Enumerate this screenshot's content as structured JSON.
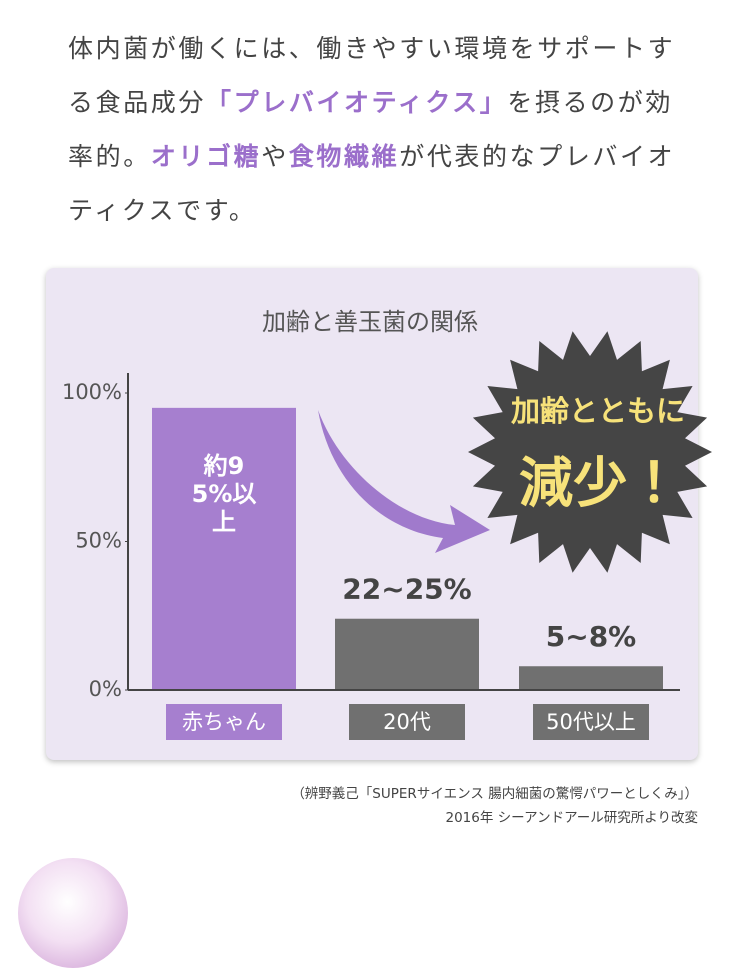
{
  "intro": {
    "segments": [
      {
        "text": "体内菌が働くには、働きやすい環境をサポートする食品成分",
        "emphasis": false
      },
      {
        "text": "「プレバイオティクス」",
        "emphasis": true
      },
      {
        "text": "を摂るのが効率的。",
        "emphasis": false
      },
      {
        "text": "オリゴ糖",
        "emphasis": true
      },
      {
        "text": "や",
        "emphasis": false
      },
      {
        "text": "食物繊維",
        "emphasis": true
      },
      {
        "text": "が代表的なプレバイオティクスです。",
        "emphasis": false
      }
    ],
    "emphasis_color": "#9b6fcb"
  },
  "chart_data": {
    "type": "bar",
    "title": "加齢と善玉菌の関係",
    "categories": [
      "赤ちゃん",
      "20代",
      "50代以上"
    ],
    "values": [
      95,
      24,
      8
    ],
    "value_labels": [
      "約95%以上",
      "22~25%",
      "5~8%"
    ],
    "colors": [
      "#a67fcf",
      "#707070",
      "#707070"
    ],
    "ylim": [
      0,
      100
    ],
    "yticks": [
      {
        "value": 0,
        "label": "0%"
      },
      {
        "value": 50,
        "label": "50%"
      },
      {
        "value": 100,
        "label": "100%"
      }
    ],
    "grid": false,
    "annotation": {
      "line1": "加齢とともに",
      "line2": "減少！"
    }
  },
  "source": {
    "line1": "（辨野義己「SUPERサイエンス 腸内細菌の驚愕パワーとしくみ」）",
    "line2": "2016年 シーアンドアール研究所より改変"
  }
}
